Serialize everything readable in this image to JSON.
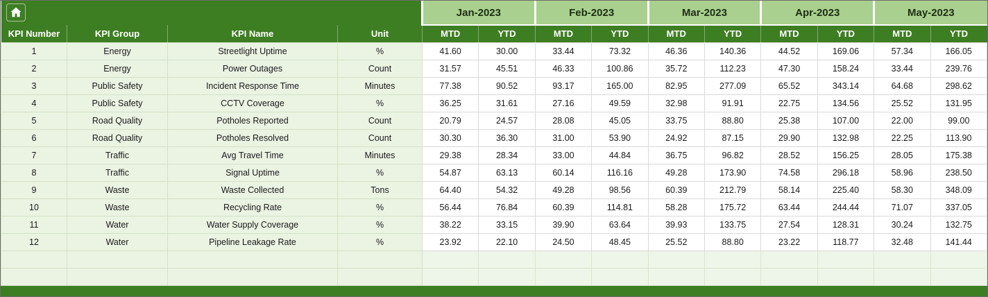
{
  "table": {
    "fixed_headers": [
      "KPI Number",
      "KPI Group",
      "KPI Name",
      "Unit"
    ],
    "months": [
      "Jan-2023",
      "Feb-2023",
      "Mar-2023",
      "Apr-2023",
      "May-2023"
    ],
    "subheaders": [
      "MTD",
      "YTD"
    ],
    "rows": [
      {
        "kpi_number": "1",
        "kpi_group": "Energy",
        "kpi_name": "Streetlight Uptime",
        "unit": "%",
        "values": [
          "41.60",
          "30.00",
          "33.44",
          "73.32",
          "46.36",
          "140.36",
          "44.52",
          "169.06",
          "57.34",
          "166.05"
        ]
      },
      {
        "kpi_number": "2",
        "kpi_group": "Energy",
        "kpi_name": "Power Outages",
        "unit": "Count",
        "values": [
          "31.57",
          "45.51",
          "46.33",
          "100.86",
          "35.72",
          "112.23",
          "47.30",
          "158.24",
          "33.44",
          "239.76"
        ]
      },
      {
        "kpi_number": "3",
        "kpi_group": "Public Safety",
        "kpi_name": "Incident Response Time",
        "unit": "Minutes",
        "values": [
          "77.38",
          "90.52",
          "93.17",
          "165.00",
          "82.95",
          "277.09",
          "65.52",
          "343.14",
          "64.68",
          "298.62"
        ]
      },
      {
        "kpi_number": "4",
        "kpi_group": "Public Safety",
        "kpi_name": "CCTV Coverage",
        "unit": "%",
        "values": [
          "36.25",
          "31.61",
          "27.16",
          "49.59",
          "32.98",
          "91.91",
          "22.75",
          "134.56",
          "25.52",
          "131.95"
        ]
      },
      {
        "kpi_number": "5",
        "kpi_group": "Road Quality",
        "kpi_name": "Potholes Reported",
        "unit": "Count",
        "values": [
          "20.79",
          "24.57",
          "28.08",
          "45.05",
          "33.75",
          "88.80",
          "25.38",
          "107.00",
          "22.00",
          "99.00"
        ]
      },
      {
        "kpi_number": "6",
        "kpi_group": "Road Quality",
        "kpi_name": "Potholes Resolved",
        "unit": "Count",
        "values": [
          "30.30",
          "36.30",
          "31.00",
          "53.90",
          "24.92",
          "87.15",
          "29.90",
          "132.98",
          "22.25",
          "113.90"
        ]
      },
      {
        "kpi_number": "7",
        "kpi_group": "Traffic",
        "kpi_name": "Avg Travel Time",
        "unit": "Minutes",
        "values": [
          "29.38",
          "28.34",
          "33.00",
          "44.84",
          "36.75",
          "96.82",
          "28.52",
          "156.25",
          "28.05",
          "175.38"
        ]
      },
      {
        "kpi_number": "8",
        "kpi_group": "Traffic",
        "kpi_name": "Signal Uptime",
        "unit": "%",
        "values": [
          "54.87",
          "63.13",
          "60.14",
          "116.16",
          "49.28",
          "173.90",
          "74.58",
          "296.18",
          "58.96",
          "238.50"
        ]
      },
      {
        "kpi_number": "9",
        "kpi_group": "Waste",
        "kpi_name": "Waste Collected",
        "unit": "Tons",
        "values": [
          "64.40",
          "54.32",
          "49.28",
          "98.56",
          "60.39",
          "212.79",
          "58.14",
          "225.40",
          "58.30",
          "348.09"
        ]
      },
      {
        "kpi_number": "10",
        "kpi_group": "Waste",
        "kpi_name": "Recycling Rate",
        "unit": "%",
        "values": [
          "56.44",
          "76.84",
          "60.39",
          "114.81",
          "58.28",
          "175.72",
          "63.44",
          "244.44",
          "71.07",
          "337.05"
        ]
      },
      {
        "kpi_number": "11",
        "kpi_group": "Water",
        "kpi_name": "Water Supply Coverage",
        "unit": "%",
        "values": [
          "38.22",
          "33.15",
          "39.90",
          "63.64",
          "39.93",
          "133.75",
          "27.54",
          "128.31",
          "30.24",
          "132.75"
        ]
      },
      {
        "kpi_number": "12",
        "kpi_group": "Water",
        "kpi_name": "Pipeline Leakage Rate",
        "unit": "%",
        "values": [
          "23.92",
          "22.10",
          "24.50",
          "48.45",
          "25.52",
          "88.80",
          "23.22",
          "118.77",
          "32.48",
          "141.44"
        ]
      }
    ],
    "empty_row_count": 2
  },
  "colors": {
    "header_dark_green": "#3e7e23",
    "month_light_green": "#a9d08e",
    "fixed_column_tint": "#ebf3e3",
    "empty_row_tint": "#eef5e9",
    "grid_line": "#d9d9d9"
  }
}
